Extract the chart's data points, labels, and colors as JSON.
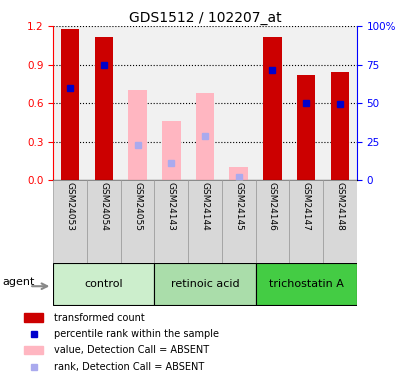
{
  "title": "GDS1512 / 102207_at",
  "samples": [
    "GSM24053",
    "GSM24054",
    "GSM24055",
    "GSM24143",
    "GSM24144",
    "GSM24145",
    "GSM24146",
    "GSM24147",
    "GSM24148"
  ],
  "red_bars": [
    1.18,
    1.12,
    null,
    null,
    null,
    null,
    1.12,
    0.82,
    0.84
  ],
  "blue_marks": [
    0.72,
    0.9,
    null,
    null,
    null,
    null,
    0.86,
    0.6,
    0.59
  ],
  "pink_bars": [
    null,
    null,
    0.7,
    0.46,
    0.68,
    0.1,
    null,
    null,
    null
  ],
  "lightblue_marks": [
    null,
    null,
    0.27,
    0.13,
    0.34,
    0.02,
    null,
    null,
    null
  ],
  "ylim_left": [
    0,
    1.2
  ],
  "ylim_right": [
    0,
    100
  ],
  "yticks_left": [
    0,
    0.3,
    0.6,
    0.9,
    1.2
  ],
  "yticks_right": [
    0,
    25,
    50,
    75,
    100
  ],
  "bar_width": 0.55,
  "bar_color_red": "#CC0000",
  "bar_color_pink": "#FFB6C1",
  "mark_color_blue": "#0000CC",
  "mark_color_lightblue": "#AAAAEE",
  "groups": [
    {
      "name": "control",
      "start": 0,
      "end": 2,
      "color": "#CCEECC"
    },
    {
      "name": "retinoic acid",
      "start": 3,
      "end": 5,
      "color": "#AADDAA"
    },
    {
      "name": "trichostatin A",
      "start": 6,
      "end": 8,
      "color": "#44CC44"
    }
  ],
  "tick_bg_color": "#D8D8D8",
  "agent_label": "agent",
  "legend_items": [
    {
      "color": "#CC0000",
      "type": "rect",
      "label": "transformed count"
    },
    {
      "color": "#0000CC",
      "type": "square",
      "label": "percentile rank within the sample"
    },
    {
      "color": "#FFB6C1",
      "type": "rect",
      "label": "value, Detection Call = ABSENT"
    },
    {
      "color": "#AAAAEE",
      "type": "square",
      "label": "rank, Detection Call = ABSENT"
    }
  ]
}
